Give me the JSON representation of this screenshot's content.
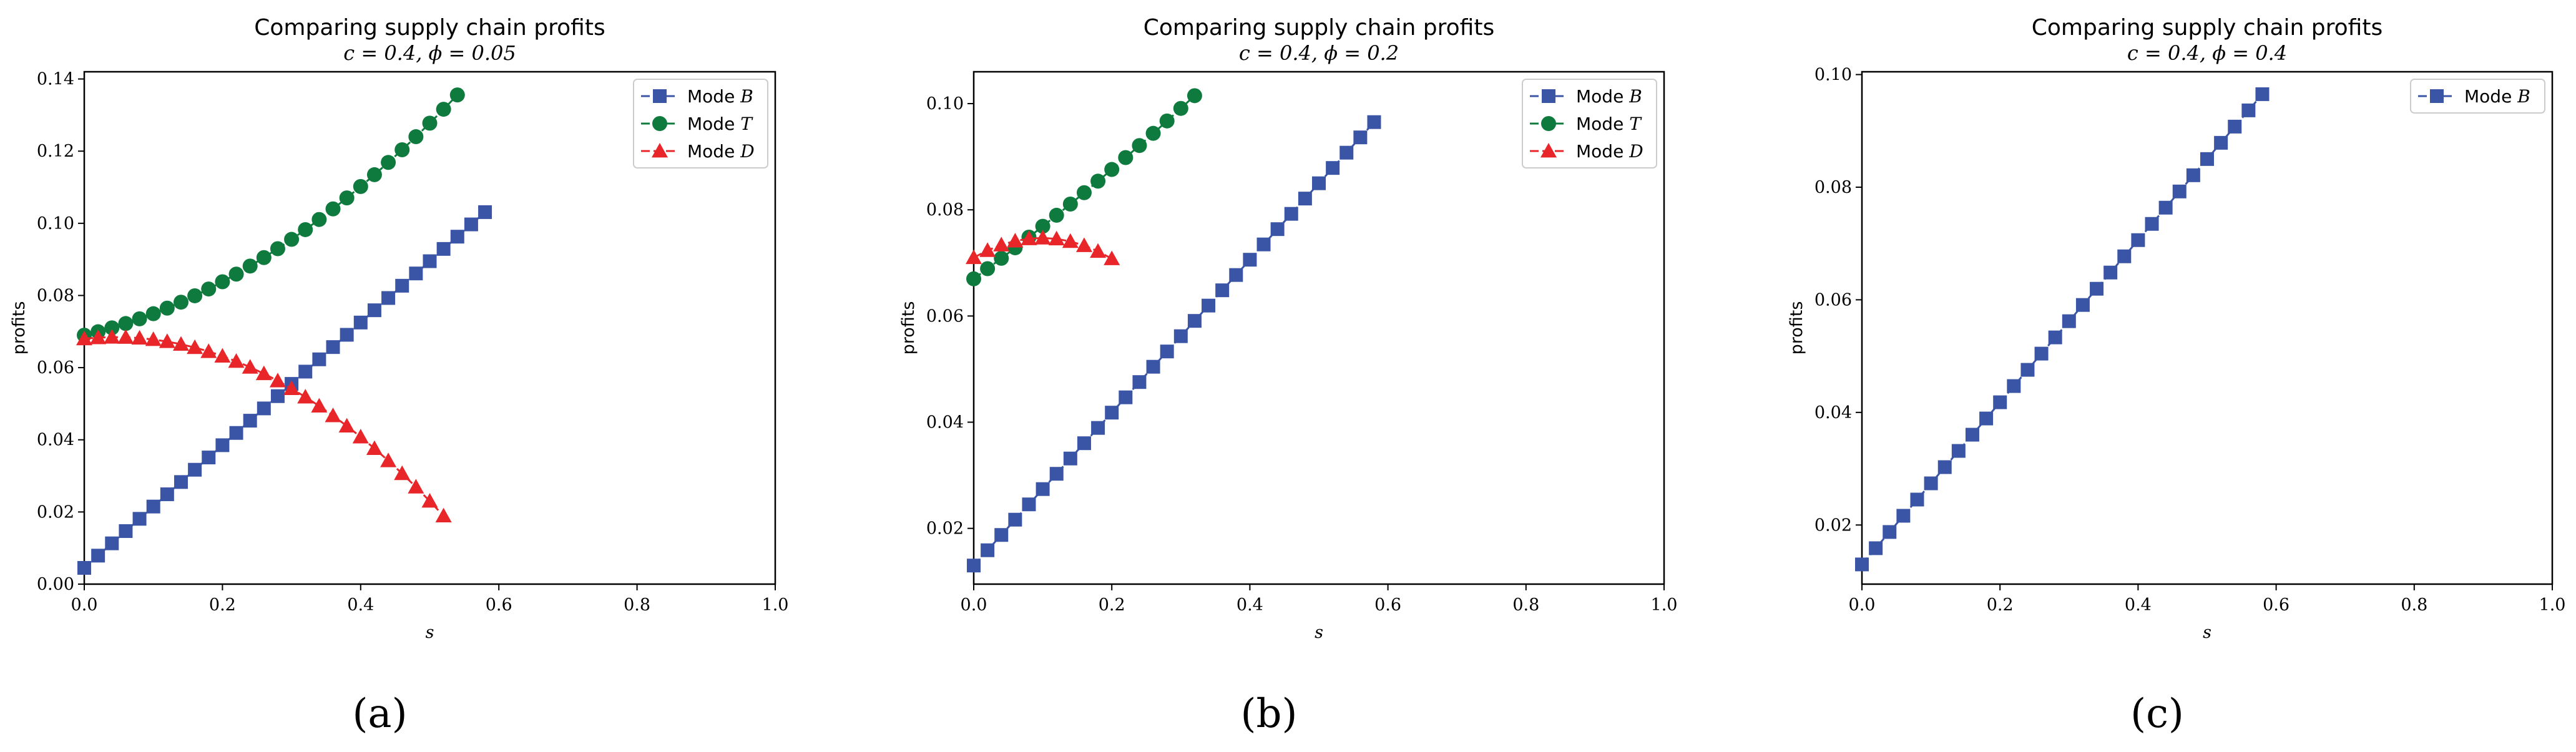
{
  "chart_data": [
    {
      "type": "line",
      "panel_label": "(a)",
      "title": "Comparing supply chain profits",
      "subtitle": "c = 0.4, ϕ = 0.05",
      "xlabel": "s",
      "ylabel": "profits",
      "xlim": [
        0.0,
        1.0
      ],
      "ylim": [
        0.0,
        0.142
      ],
      "xticks": [
        "0.0",
        "0.2",
        "0.4",
        "0.6",
        "0.8",
        "1.0"
      ],
      "xtick_values": [
        0.0,
        0.2,
        0.4,
        0.6,
        0.8,
        1.0
      ],
      "yticks": [
        "0.00",
        "0.02",
        "0.04",
        "0.06",
        "0.08",
        "0.10",
        "0.12",
        "0.14"
      ],
      "ytick_values": [
        0.0,
        0.02,
        0.04,
        0.06,
        0.08,
        0.1,
        0.12,
        0.14
      ],
      "legend_position": "upper-right",
      "series": [
        {
          "name": "Mode B",
          "legend_text": "Mode ",
          "legend_var": "B",
          "marker": "square",
          "color": "#3b55a6",
          "x_start": 0.0,
          "x_step": 0.02,
          "count": 30,
          "poly": [
            0.0045,
            0.17,
            0.0
          ]
        },
        {
          "name": "Mode T",
          "legend_text": "Mode ",
          "legend_var": "T",
          "marker": "circle",
          "color": "#0f7a3e",
          "x_start": 0.0,
          "x_step": 0.02,
          "count": 28,
          "poly": [
            0.069,
            0.045,
            0.145
          ]
        },
        {
          "name": "Mode D",
          "legend_text": "Mode ",
          "legend_var": "D",
          "marker": "triangle",
          "color": "#e8262a",
          "x_start": 0.0,
          "x_step": 0.02,
          "count": 27,
          "poly": [
            0.068,
            0.02,
            -0.22
          ]
        }
      ]
    },
    {
      "type": "line",
      "panel_label": "(b)",
      "title": "Comparing supply chain profits",
      "subtitle": "c = 0.4, ϕ = 0.2",
      "xlabel": "s",
      "ylabel": "profits",
      "xlim": [
        0.0,
        1.0
      ],
      "ylim": [
        0.0095,
        0.106
      ],
      "xticks": [
        "0.0",
        "0.2",
        "0.4",
        "0.6",
        "0.8",
        "1.0"
      ],
      "xtick_values": [
        0.0,
        0.2,
        0.4,
        0.6,
        0.8,
        1.0
      ],
      "yticks": [
        "0.02",
        "0.04",
        "0.06",
        "0.08",
        "0.10"
      ],
      "ytick_values": [
        0.02,
        0.04,
        0.06,
        0.08,
        0.1
      ],
      "legend_position": "upper-right",
      "series": [
        {
          "name": "Mode B",
          "legend_text": "Mode ",
          "legend_var": "B",
          "marker": "square",
          "color": "#3b55a6",
          "x_start": 0.0,
          "x_step": 0.02,
          "count": 30,
          "poly": [
            0.013,
            0.144,
            0.0
          ]
        },
        {
          "name": "Mode T",
          "legend_text": "Mode ",
          "legend_var": "T",
          "marker": "circle",
          "color": "#0f7a3e",
          "x_start": 0.0,
          "x_step": 0.02,
          "count": 17,
          "poly": [
            0.067,
            0.095,
            0.04
          ]
        },
        {
          "name": "Mode D",
          "legend_text": "Mode ",
          "legend_var": "D",
          "marker": "triangle",
          "color": "#e8262a",
          "x_start": 0.0,
          "x_step": 0.02,
          "count": 11,
          "poly": [
            0.071,
            0.075,
            -0.38
          ]
        }
      ]
    },
    {
      "type": "line",
      "panel_label": "(c)",
      "title": "Comparing supply chain profits",
      "subtitle": "c = 0.4, ϕ = 0.4",
      "xlabel": "s",
      "ylabel": "profits",
      "xlim": [
        0.0,
        1.0
      ],
      "ylim": [
        0.0095,
        0.1005
      ],
      "xticks": [
        "0.0",
        "0.2",
        "0.4",
        "0.6",
        "0.8",
        "1.0"
      ],
      "xtick_values": [
        0.0,
        0.2,
        0.4,
        0.6,
        0.8,
        1.0
      ],
      "yticks": [
        "0.02",
        "0.04",
        "0.06",
        "0.08",
        "0.10"
      ],
      "ytick_values": [
        0.02,
        0.04,
        0.06,
        0.08,
        0.1
      ],
      "legend_position": "upper-right",
      "series": [
        {
          "name": "Mode B",
          "legend_text": "Mode ",
          "legend_var": "B",
          "marker": "square",
          "color": "#3b55a6",
          "x_start": 0.0,
          "x_step": 0.02,
          "count": 30,
          "poly": [
            0.013,
            0.144,
            0.0
          ]
        }
      ]
    }
  ]
}
